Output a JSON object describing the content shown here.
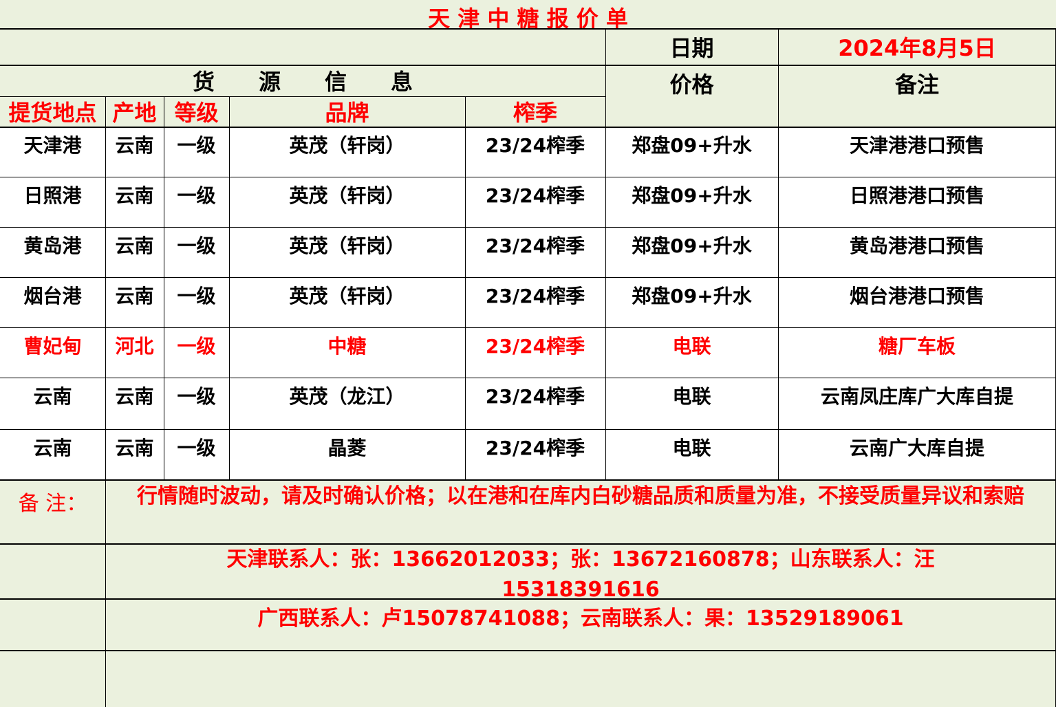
{
  "title": "天 津 中 糖 报 价 单",
  "date_label": "日期",
  "date_value": "2024年8月5日",
  "section_header": "货　　源　　信　　息",
  "price_header": "价格",
  "remark_header": "备注",
  "columns": [
    "提货地点",
    "产地",
    "等级",
    "品牌",
    "榨季"
  ],
  "rows": [
    {
      "location": "天津港",
      "origin": "云南",
      "grade": "一级",
      "brand": "英茂（轩岗）",
      "season": "23/24榨季",
      "price": "郑盘09+升水",
      "remark": "天津港港口预售",
      "highlight": false
    },
    {
      "location": "日照港",
      "origin": "云南",
      "grade": "一级",
      "brand": "英茂（轩岗）",
      "season": "23/24榨季",
      "price": "郑盘09+升水",
      "remark": "日照港港口预售",
      "highlight": false
    },
    {
      "location": "黄岛港",
      "origin": "云南",
      "grade": "一级",
      "brand": "英茂（轩岗）",
      "season": "23/24榨季",
      "price": "郑盘09+升水",
      "remark": "黄岛港港口预售",
      "highlight": false
    },
    {
      "location": "烟台港",
      "origin": "云南",
      "grade": "一级",
      "brand": "英茂（轩岗）",
      "season": "23/24榨季",
      "price": "郑盘09+升水",
      "remark": "烟台港港口预售",
      "highlight": false
    },
    {
      "location": "曹妃甸",
      "origin": "河北",
      "grade": "一级",
      "brand": "中糖",
      "season": "23/24榨季",
      "price": "电联",
      "remark": "糖厂车板",
      "highlight": true
    },
    {
      "location": "云南",
      "origin": "云南",
      "grade": "一级",
      "brand": "英茂（龙江）",
      "season": "23/24榨季",
      "price": "电联",
      "remark": "云南凤庄库广大库自提",
      "highlight": false
    },
    {
      "location": "云南",
      "origin": "云南",
      "grade": "一级",
      "brand": "晶菱",
      "season": "23/24榨季",
      "price": "电联",
      "remark": "云南广大库自提",
      "highlight": false
    }
  ],
  "notes": {
    "label": "备 注：",
    "disclaimer": "行情随时波动，请及时确认价格；以在港和在库内白砂糖品质和质量为准，不接受质量异议和索赔",
    "contacts_1": "天津联系人：张：13662012033；张：13672160878；山东联系人：汪15318391616",
    "contacts_2": "广西联系人：卢15078741088；云南联系人：果：13529189061"
  },
  "colors": {
    "accent": "#ff0000",
    "header_bg": "#ebf1de",
    "row_bg": "#ffffff"
  }
}
